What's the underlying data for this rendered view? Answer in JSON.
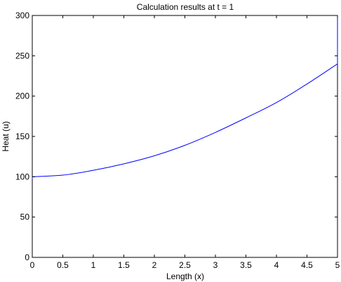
{
  "chart_data": {
    "type": "line",
    "title": "Calculation results at t = 1",
    "xlabel": "Length (x)",
    "ylabel": "Heat (u)",
    "xlim": [
      0,
      5
    ],
    "ylim": [
      0,
      300
    ],
    "xticks": [
      0,
      0.5,
      1,
      1.5,
      2,
      2.5,
      3,
      3.5,
      4,
      4.5,
      5
    ],
    "xtick_labels": [
      "0",
      "0.5",
      "1",
      "1.5",
      "2",
      "2.5",
      "3",
      "3.5",
      "4",
      "4.5",
      "5"
    ],
    "yticks": [
      0,
      50,
      100,
      150,
      200,
      250,
      300
    ],
    "ytick_labels": [
      "0",
      "50",
      "100",
      "150",
      "200",
      "250",
      "300"
    ],
    "grid": false,
    "series": [
      {
        "color": "#0000ff",
        "x": [
          0,
          0,
          0.5,
          1,
          1.5,
          2,
          2.5,
          3,
          3.5,
          4,
          4.5,
          5,
          5
        ],
        "y": [
          97,
          100,
          102,
          108,
          116,
          126,
          139,
          155,
          173,
          192,
          215,
          240,
          300
        ]
      }
    ]
  }
}
